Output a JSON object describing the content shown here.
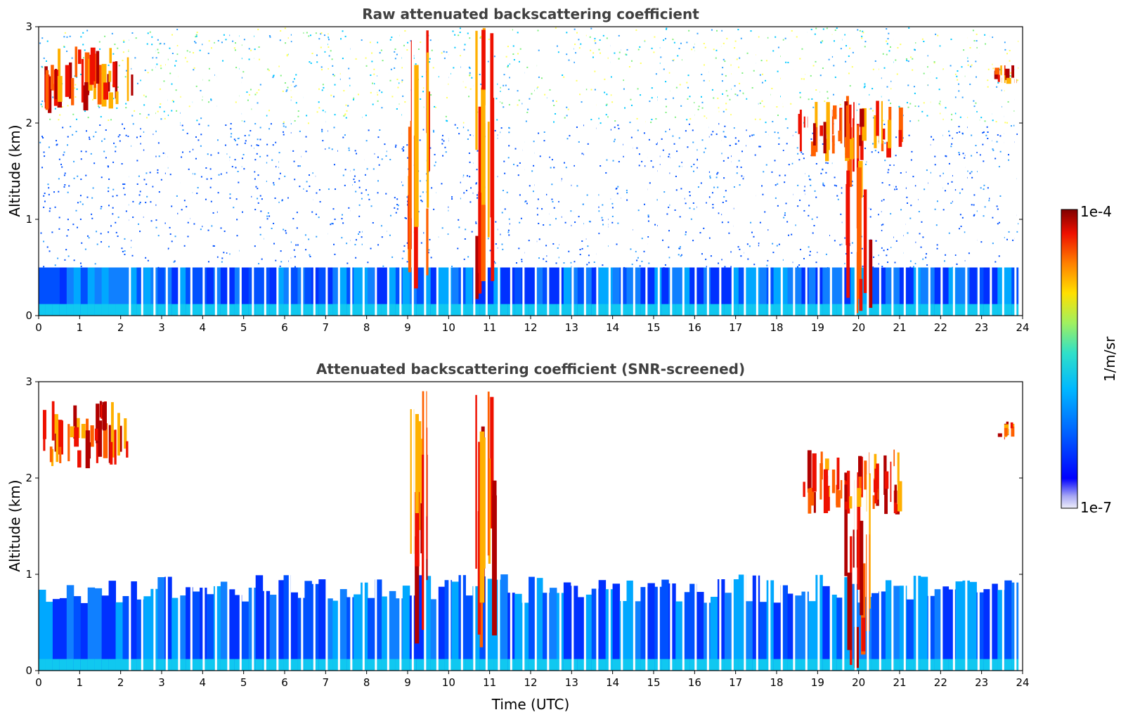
{
  "chart_data": [
    {
      "type": "heatmap",
      "title": "Raw attenuated backscattering coefficient",
      "xlabel": "",
      "ylabel": "Altitude (km)",
      "xlim": [
        0,
        24
      ],
      "ylim": [
        0,
        3
      ],
      "xticks": [
        "0",
        "1",
        "2",
        "3",
        "4",
        "5",
        "6",
        "7",
        "8",
        "9",
        "10",
        "11",
        "12",
        "13",
        "14",
        "15",
        "16",
        "17",
        "18",
        "19",
        "20",
        "21",
        "22",
        "23",
        "24"
      ],
      "yticks": [
        "0",
        "1",
        "2",
        "3"
      ],
      "data_end_hour": 23.9,
      "layers": [
        {
          "kind": "noise",
          "x": [
            0,
            23.9
          ],
          "top_altitude": 3,
          "level": "low",
          "note": "signal noise increasing with altitude"
        },
        {
          "kind": "boundary-layer",
          "x": [
            0,
            23.9
          ],
          "top_altitude": 0.5,
          "level": "medium"
        },
        {
          "kind": "cloud",
          "x": [
            0.1,
            2.2
          ],
          "altitude": [
            2.1,
            2.8
          ],
          "level": "high"
        },
        {
          "kind": "precipitation-streak",
          "x": [
            9.0,
            9.5
          ],
          "altitude": [
            0,
            3.0
          ],
          "level": "high"
        },
        {
          "kind": "precipitation-streak",
          "x": [
            10.6,
            11.1
          ],
          "altitude": [
            0,
            3.0
          ],
          "level": "high"
        },
        {
          "kind": "precipitation",
          "x": [
            19.6,
            20.3
          ],
          "altitude": [
            0,
            2.2
          ],
          "level": "high"
        },
        {
          "kind": "cloud",
          "x": [
            18.5,
            21.0
          ],
          "altitude": [
            1.6,
            2.3
          ],
          "level": "high"
        },
        {
          "kind": "cloud",
          "x": [
            23.3,
            23.8
          ],
          "altitude": [
            2.4,
            2.6
          ],
          "level": "high"
        }
      ]
    },
    {
      "type": "heatmap",
      "title": "Attenuated backscattering coefficient (SNR-screened)",
      "xlabel": "Time (UTC)",
      "ylabel": "Altitude (km)",
      "xlim": [
        0,
        24
      ],
      "ylim": [
        0,
        3
      ],
      "xticks": [
        "0",
        "1",
        "2",
        "3",
        "4",
        "5",
        "6",
        "7",
        "8",
        "9",
        "10",
        "11",
        "12",
        "13",
        "14",
        "15",
        "16",
        "17",
        "18",
        "19",
        "20",
        "21",
        "22",
        "23",
        "24"
      ],
      "yticks": [
        "0",
        "1",
        "2",
        "3"
      ],
      "data_end_hour": 23.9,
      "layers": [
        {
          "kind": "boundary-layer",
          "x": [
            0,
            23.9
          ],
          "top_altitude": [
            0.7,
            1.0
          ],
          "level": "medium"
        },
        {
          "kind": "cloud",
          "x": [
            0.1,
            2.2
          ],
          "altitude": [
            2.1,
            2.8
          ],
          "level": "high"
        },
        {
          "kind": "precipitation-streak",
          "x": [
            9.0,
            9.5
          ],
          "altitude": [
            0,
            3.0
          ],
          "level": "high"
        },
        {
          "kind": "precipitation-streak",
          "x": [
            10.6,
            11.1
          ],
          "altitude": [
            0,
            3.0
          ],
          "level": "high"
        },
        {
          "kind": "precipitation",
          "x": [
            19.6,
            20.3
          ],
          "altitude": [
            0,
            2.2
          ],
          "level": "high"
        },
        {
          "kind": "cloud",
          "x": [
            18.5,
            21.0
          ],
          "altitude": [
            1.6,
            2.3
          ],
          "level": "high"
        },
        {
          "kind": "cloud",
          "x": [
            23.3,
            23.8
          ],
          "altitude": [
            2.4,
            2.6
          ],
          "level": "high"
        }
      ]
    }
  ],
  "colorbar": {
    "label": "1/m/sr",
    "max_label": "1e-4",
    "min_label": "1e-7",
    "scale": "log",
    "colormap": "jet",
    "colors": [
      "#e8e8f6",
      "#a8a8f4",
      "#0000ff",
      "#0060ff",
      "#00b8ff",
      "#30e0c8",
      "#a0f060",
      "#ffe000",
      "#ff8000",
      "#ee1000",
      "#800000"
    ]
  }
}
